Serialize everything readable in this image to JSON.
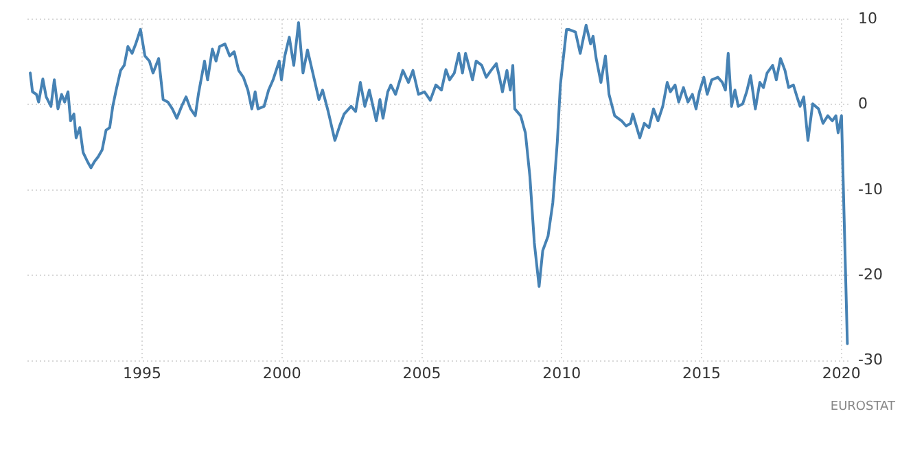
{
  "chart_data": {
    "type": "line",
    "x": [
      1991.0,
      1991.08,
      1991.22,
      1991.3,
      1991.45,
      1991.57,
      1991.74,
      1991.86,
      1991.99,
      1992.12,
      1992.23,
      1992.35,
      1992.44,
      1992.56,
      1992.64,
      1992.77,
      1992.89,
      1993.05,
      1993.17,
      1993.29,
      1993.43,
      1993.57,
      1993.71,
      1993.84,
      1993.95,
      1994.07,
      1994.23,
      1994.36,
      1994.49,
      1994.64,
      1994.77,
      1994.94,
      1995.1,
      1995.26,
      1995.39,
      1995.59,
      1995.75,
      1995.92,
      1996.08,
      1996.24,
      1996.41,
      1996.57,
      1996.73,
      1996.9,
      1997.01,
      1997.23,
      1997.34,
      1997.51,
      1997.64,
      1997.77,
      1997.96,
      1998.13,
      1998.29,
      1998.45,
      1998.62,
      1998.78,
      1998.92,
      1999.04,
      1999.14,
      1999.36,
      1999.52,
      1999.68,
      1999.9,
      1999.98,
      2000.1,
      2000.26,
      2000.42,
      2000.59,
      2000.75,
      2000.91,
      2001.08,
      2001.32,
      2001.45,
      2001.65,
      2001.89,
      2002.06,
      2002.22,
      2002.47,
      2002.63,
      2002.8,
      2002.96,
      2003.12,
      2003.37,
      2003.5,
      2003.61,
      2003.78,
      2003.89,
      2004.06,
      2004.32,
      2004.52,
      2004.68,
      2004.88,
      2005.09,
      2005.3,
      2005.5,
      2005.7,
      2005.86,
      2005.99,
      2006.16,
      2006.32,
      2006.45,
      2006.56,
      2006.81,
      2006.94,
      2007.14,
      2007.3,
      2007.47,
      2007.66,
      2007.76,
      2007.88,
      2008.04,
      2008.16,
      2008.25,
      2008.32,
      2008.53,
      2008.7,
      2008.86,
      2009.02,
      2009.19,
      2009.32,
      2009.51,
      2009.68,
      2009.84,
      2009.95,
      2010.17,
      2010.25,
      2010.49,
      2010.66,
      2010.87,
      2011.03,
      2011.12,
      2011.23,
      2011.4,
      2011.56,
      2011.69,
      2011.89,
      2012.14,
      2012.3,
      2012.46,
      2012.54,
      2012.79,
      2012.95,
      2013.12,
      2013.28,
      2013.44,
      2013.61,
      2013.77,
      2013.88,
      2014.05,
      2014.18,
      2014.35,
      2014.51,
      2014.67,
      2014.8,
      2014.92,
      2015.08,
      2015.2,
      2015.36,
      2015.58,
      2015.74,
      2015.85,
      2015.95,
      2016.07,
      2016.19,
      2016.31,
      2016.47,
      2016.61,
      2016.75,
      2016.92,
      2017.08,
      2017.21,
      2017.34,
      2017.54,
      2017.67,
      2017.82,
      2017.98,
      2018.11,
      2018.28,
      2018.41,
      2018.52,
      2018.65,
      2018.8,
      2018.97,
      2019.18,
      2019.34,
      2019.51,
      2019.67,
      2019.8,
      2019.88,
      2020.0,
      2020.21
    ],
    "series": [
      {
        "color": "#4682b4",
        "values": [
          3.7,
          1.5,
          1.2,
          0.3,
          3.0,
          0.9,
          -0.2,
          2.9,
          -0.5,
          1.2,
          0.3,
          1.5,
          -1.9,
          -1.1,
          -3.9,
          -2.7,
          -5.6,
          -6.7,
          -7.4,
          -6.7,
          -6.1,
          -5.3,
          -3.0,
          -2.7,
          -0.2,
          1.7,
          4.0,
          4.6,
          6.8,
          6.0,
          7.1,
          8.8,
          5.7,
          5.1,
          3.7,
          5.4,
          0.6,
          0.3,
          -0.5,
          -1.6,
          -0.2,
          0.9,
          -0.5,
          -1.3,
          1.2,
          5.1,
          2.9,
          6.5,
          5.1,
          6.8,
          7.1,
          5.7,
          6.2,
          4.0,
          3.2,
          1.7,
          -0.5,
          1.5,
          -0.5,
          -0.2,
          1.7,
          2.9,
          5.1,
          2.9,
          5.7,
          7.9,
          4.6,
          9.6,
          3.7,
          6.4,
          4.0,
          0.6,
          1.7,
          -0.8,
          -4.2,
          -2.5,
          -1.1,
          -0.2,
          -0.8,
          2.6,
          -0.2,
          1.7,
          -1.9,
          0.6,
          -1.6,
          1.5,
          2.3,
          1.2,
          4.0,
          2.6,
          4.0,
          1.2,
          1.5,
          0.5,
          2.3,
          1.7,
          4.1,
          2.9,
          3.7,
          6.0,
          3.7,
          6.0,
          2.9,
          5.1,
          4.6,
          3.2,
          4.0,
          4.8,
          3.4,
          1.5,
          4.0,
          1.7,
          4.6,
          -0.5,
          -1.3,
          -3.3,
          -8.4,
          -16.2,
          -21.3,
          -17.1,
          -15.4,
          -11.5,
          -4.4,
          2.3,
          8.8,
          8.8,
          8.5,
          6.0,
          9.3,
          7.1,
          8.0,
          5.4,
          2.6,
          5.7,
          1.2,
          -1.3,
          -1.9,
          -2.5,
          -2.2,
          -1.1,
          -3.9,
          -2.2,
          -2.7,
          -0.5,
          -1.9,
          -0.2,
          2.6,
          1.5,
          2.3,
          0.3,
          2.0,
          0.3,
          1.2,
          -0.5,
          1.5,
          3.2,
          1.2,
          2.9,
          3.2,
          2.6,
          1.7,
          6.0,
          -0.2,
          1.7,
          -0.2,
          0.1,
          1.5,
          3.4,
          -0.5,
          2.6,
          2.0,
          3.7,
          4.6,
          2.9,
          5.4,
          4.0,
          2.0,
          2.3,
          0.9,
          -0.2,
          0.9,
          -4.2,
          0.1,
          -0.5,
          -2.2,
          -1.3,
          -1.9,
          -1.3,
          -3.3,
          -1.3,
          -28.0
        ]
      }
    ],
    "xlim": [
      1990.9,
      2020.3
    ],
    "xticks": [
      1995,
      2000,
      2005,
      2010,
      2015,
      2020
    ],
    "ylim": [
      -30,
      10
    ],
    "yticks": [
      -30,
      -20,
      -10,
      0,
      10
    ],
    "grid": true,
    "marker": "none",
    "line_style": "solid",
    "annotations": [
      "EUROSTAT"
    ]
  }
}
